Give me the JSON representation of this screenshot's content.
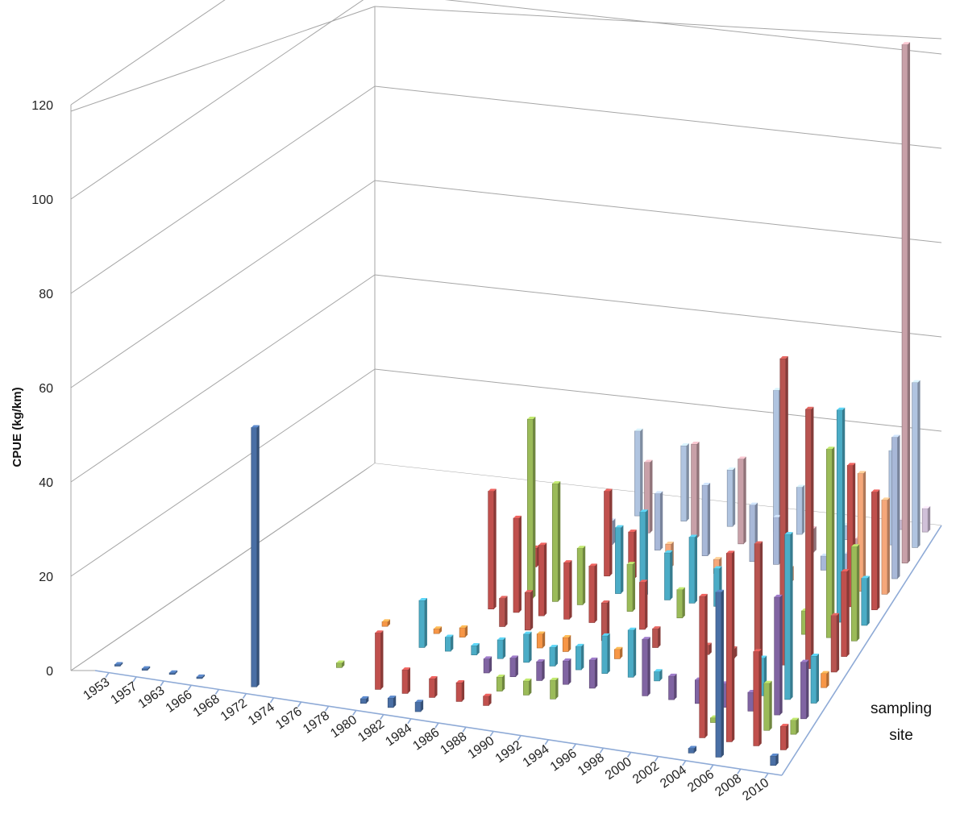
{
  "chart_data": {
    "type": "bar3d",
    "ylabel": "CPUE (kg/km)",
    "zlabel": [
      "sampling",
      "site"
    ],
    "ylim": [
      0,
      120
    ],
    "y_ticks": [
      "0",
      "20",
      "40",
      "60",
      "80",
      "100",
      "120"
    ],
    "grid": true,
    "categories": [
      "1953",
      "1957",
      "1963",
      "1966",
      "1968",
      "1972",
      "1974",
      "1976",
      "1978",
      "1980",
      "1982",
      "1984",
      "1986",
      "1988",
      "1990",
      "1992",
      "1994",
      "1996",
      "1998",
      "2000",
      "2002",
      "2004",
      "2006",
      "2008",
      "2010"
    ],
    "sites": 16,
    "series_colors": [
      "#4a6fa5",
      "#c0504d",
      "#9bbb59",
      "#8064a2",
      "#4bacc6",
      "#f79646",
      "#b85450",
      "#c0504d",
      "#9bbb59",
      "#4bacc6",
      "#c0504d",
      "#f5a77a",
      "#a8b8d8",
      "#c8a0a8",
      "#b0c4e0",
      "#d0c0d8"
    ],
    "points": [
      {
        "x": "1953",
        "site": 0,
        "y": 0.3
      },
      {
        "x": "1957",
        "site": 0,
        "y": 0.3
      },
      {
        "x": "1963",
        "site": 0,
        "y": 0.3
      },
      {
        "x": "1966",
        "site": 0,
        "y": 0.3
      },
      {
        "x": "1972",
        "site": 0,
        "y": 55
      },
      {
        "x": "1976",
        "site": 2,
        "y": 1
      },
      {
        "x": "1976",
        "site": 5,
        "y": 1
      },
      {
        "x": "1980",
        "site": 0,
        "y": 1
      },
      {
        "x": "1980",
        "site": 1,
        "y": 12
      },
      {
        "x": "1980",
        "site": 4,
        "y": 10
      },
      {
        "x": "1980",
        "site": 5,
        "y": 1
      },
      {
        "x": "1982",
        "site": 0,
        "y": 2
      },
      {
        "x": "1982",
        "site": 1,
        "y": 5
      },
      {
        "x": "1982",
        "site": 4,
        "y": 3
      },
      {
        "x": "1982",
        "site": 5,
        "y": 2
      },
      {
        "x": "1982",
        "site": 7,
        "y": 25
      },
      {
        "x": "1982",
        "site": 10,
        "y": 4
      },
      {
        "x": "1984",
        "site": 0,
        "y": 2
      },
      {
        "x": "1984",
        "site": 1,
        "y": 4
      },
      {
        "x": "1984",
        "site": 4,
        "y": 2
      },
      {
        "x": "1984",
        "site": 6,
        "y": 6
      },
      {
        "x": "1984",
        "site": 7,
        "y": 20
      },
      {
        "x": "1984",
        "site": 8,
        "y": 38
      },
      {
        "x": "1986",
        "site": 1,
        "y": 4
      },
      {
        "x": "1986",
        "site": 3,
        "y": 3
      },
      {
        "x": "1986",
        "site": 4,
        "y": 4
      },
      {
        "x": "1986",
        "site": 6,
        "y": 8
      },
      {
        "x": "1986",
        "site": 7,
        "y": 15
      },
      {
        "x": "1986",
        "site": 8,
        "y": 25
      },
      {
        "x": "1986",
        "site": 12,
        "y": 5
      },
      {
        "x": "1986",
        "site": 14,
        "y": 18
      },
      {
        "x": "1988",
        "site": 1,
        "y": 2
      },
      {
        "x": "1988",
        "site": 2,
        "y": 3
      },
      {
        "x": "1988",
        "site": 3,
        "y": 4
      },
      {
        "x": "1988",
        "site": 4,
        "y": 6
      },
      {
        "x": "1988",
        "site": 5,
        "y": 3
      },
      {
        "x": "1988",
        "site": 7,
        "y": 12
      },
      {
        "x": "1988",
        "site": 8,
        "y": 12
      },
      {
        "x": "1988",
        "site": 10,
        "y": 18
      },
      {
        "x": "1988",
        "site": 13,
        "y": 15
      },
      {
        "x": "1990",
        "site": 2,
        "y": 3
      },
      {
        "x": "1990",
        "site": 3,
        "y": 4
      },
      {
        "x": "1990",
        "site": 4,
        "y": 4
      },
      {
        "x": "1990",
        "site": 5,
        "y": 3
      },
      {
        "x": "1990",
        "site": 7,
        "y": 12
      },
      {
        "x": "1990",
        "site": 9,
        "y": 14
      },
      {
        "x": "1990",
        "site": 10,
        "y": 10
      },
      {
        "x": "1990",
        "site": 12,
        "y": 12
      },
      {
        "x": "1990",
        "site": 14,
        "y": 16
      },
      {
        "x": "1992",
        "site": 2,
        "y": 4
      },
      {
        "x": "1992",
        "site": 3,
        "y": 5
      },
      {
        "x": "1992",
        "site": 4,
        "y": 5
      },
      {
        "x": "1992",
        "site": 6,
        "y": 8
      },
      {
        "x": "1992",
        "site": 8,
        "y": 10
      },
      {
        "x": "1992",
        "site": 9,
        "y": 18
      },
      {
        "x": "1992",
        "site": 11,
        "y": 5
      },
      {
        "x": "1992",
        "site": 13,
        "y": 20
      },
      {
        "x": "1994",
        "site": 3,
        "y": 6
      },
      {
        "x": "1994",
        "site": 4,
        "y": 8
      },
      {
        "x": "1994",
        "site": 5,
        "y": 2
      },
      {
        "x": "1994",
        "site": 7,
        "y": 10
      },
      {
        "x": "1994",
        "site": 9,
        "y": 10
      },
      {
        "x": "1994",
        "site": 12,
        "y": 15
      },
      {
        "x": "1994",
        "site": 14,
        "y": 12
      },
      {
        "x": "1996",
        "site": 4,
        "y": 10
      },
      {
        "x": "1996",
        "site": 6,
        "y": 4
      },
      {
        "x": "1996",
        "site": 8,
        "y": 6
      },
      {
        "x": "1996",
        "site": 9,
        "y": 14
      },
      {
        "x": "1996",
        "site": 11,
        "y": 3
      },
      {
        "x": "1996",
        "site": 13,
        "y": 18
      },
      {
        "x": "1998",
        "site": 3,
        "y": 12
      },
      {
        "x": "1998",
        "site": 4,
        "y": 2
      },
      {
        "x": "1998",
        "site": 9,
        "y": 8
      },
      {
        "x": "1998",
        "site": 12,
        "y": 12
      },
      {
        "x": "1998",
        "site": 14,
        "y": 30
      },
      {
        "x": "2000",
        "site": 3,
        "y": 5
      },
      {
        "x": "2000",
        "site": 6,
        "y": 2
      },
      {
        "x": "2000",
        "site": 12,
        "y": 10
      },
      {
        "x": "2000",
        "site": 14,
        "y": 10
      },
      {
        "x": "2002",
        "site": 3,
        "y": 5
      },
      {
        "x": "2002",
        "site": 6,
        "y": 2
      },
      {
        "x": "2002",
        "site": 11,
        "y": 3
      },
      {
        "x": "2002",
        "site": 13,
        "y": 5
      },
      {
        "x": "2004",
        "site": 0,
        "y": 1
      },
      {
        "x": "2004",
        "site": 1,
        "y": 30
      },
      {
        "x": "2004",
        "site": 2,
        "y": 1
      },
      {
        "x": "2004",
        "site": 3,
        "y": 5
      },
      {
        "x": "2004",
        "site": 6,
        "y": 25
      },
      {
        "x": "2004",
        "site": 12,
        "y": 3
      },
      {
        "x": "2004",
        "site": 14,
        "y": 3
      },
      {
        "x": "2006",
        "site": 0,
        "y": 35
      },
      {
        "x": "2006",
        "site": 1,
        "y": 40
      },
      {
        "x": "2006",
        "site": 3,
        "y": 4
      },
      {
        "x": "2006",
        "site": 4,
        "y": 8
      },
      {
        "x": "2006",
        "site": 6,
        "y": 65
      },
      {
        "x": "2006",
        "site": 8,
        "y": 5
      },
      {
        "x": "2006",
        "site": 12,
        "y": 4
      },
      {
        "x": "2006",
        "site": 13,
        "y": 4
      },
      {
        "x": "2008",
        "site": 1,
        "y": 20
      },
      {
        "x": "2008",
        "site": 2,
        "y": 10
      },
      {
        "x": "2008",
        "site": 3,
        "y": 25
      },
      {
        "x": "2008",
        "site": 4,
        "y": 35
      },
      {
        "x": "2008",
        "site": 6,
        "y": 55
      },
      {
        "x": "2008",
        "site": 8,
        "y": 40
      },
      {
        "x": "2008",
        "site": 9,
        "y": 45
      },
      {
        "x": "2008",
        "site": 10,
        "y": 30
      },
      {
        "x": "2008",
        "site": 11,
        "y": 25
      },
      {
        "x": "2008",
        "site": 14,
        "y": 20
      },
      {
        "x": "2008",
        "site": 15,
        "y": 2
      },
      {
        "x": "2010",
        "site": 0,
        "y": 2
      },
      {
        "x": "2010",
        "site": 1,
        "y": 5
      },
      {
        "x": "2010",
        "site": 2,
        "y": 3
      },
      {
        "x": "2010",
        "site": 3,
        "y": 12
      },
      {
        "x": "2010",
        "site": 4,
        "y": 10
      },
      {
        "x": "2010",
        "site": 5,
        "y": 3
      },
      {
        "x": "2010",
        "site": 6,
        "y": 12
      },
      {
        "x": "2010",
        "site": 7,
        "y": 18
      },
      {
        "x": "2010",
        "site": 8,
        "y": 20
      },
      {
        "x": "2010",
        "site": 9,
        "y": 10
      },
      {
        "x": "2010",
        "site": 10,
        "y": 25
      },
      {
        "x": "2010",
        "site": 11,
        "y": 20
      },
      {
        "x": "2010",
        "site": 12,
        "y": 30
      },
      {
        "x": "2010",
        "site": 13,
        "y": 110
      },
      {
        "x": "2010",
        "site": 14,
        "y": 35
      },
      {
        "x": "2010",
        "site": 15,
        "y": 5
      }
    ]
  }
}
